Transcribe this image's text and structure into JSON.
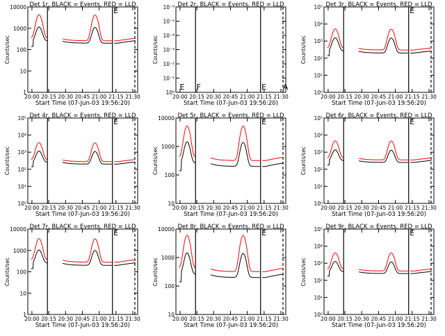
{
  "figure": {
    "xlabel_text": "Start Time (07-Jun-03 19:56:20)",
    "ylabel_text": "Counts/sec"
  },
  "colors": {
    "events": "#000000",
    "lld": "#ff0000",
    "frame": "#000000"
  },
  "x_ticks": [
    "20:00",
    "20:15",
    "20:30",
    "20:45",
    "21:00",
    "21:15",
    "21:30"
  ],
  "chart_data": [
    {
      "type": "line",
      "title": "Det 1r, BLACK = Events, RED = LLD",
      "xlim": [
        0,
        36
      ],
      "ylim": [
        1,
        10000
      ],
      "yscale": "log",
      "yticks": [
        1,
        10,
        100,
        1000,
        10000
      ],
      "ytick_labels": [
        "1",
        "10",
        "100",
        "1000",
        "10000"
      ],
      "baseline": 200,
      "ratio": 1.3,
      "peak": 1100,
      "peak_lld": 4200,
      "empty": false,
      "markers": [
        "",
        "",
        "",
        "E",
        "",
        ""
      ]
    },
    {
      "type": "line",
      "title": "Det 2r, BLACK = Events, RED = LLD",
      "xlim": [
        0,
        36
      ],
      "ylim": [
        1,
        1e-06
      ],
      "yscale": "log",
      "yticks": [
        1,
        0.1,
        0.01,
        0.001,
        0.0001,
        1e-05,
        1e-06
      ],
      "ytick_labels": [
        "10⁰",
        "10⁻¹",
        "10⁻²",
        "10⁻³",
        "10⁻⁴",
        "10⁻⁵",
        "10⁻⁶"
      ],
      "baseline": 0,
      "ratio": 1,
      "peak": 0,
      "peak_lld": 0,
      "empty": true,
      "markers": [
        "E",
        "F",
        "",
        "E",
        "",
        "A"
      ]
    },
    {
      "type": "line",
      "title": "Det 3r, BLACK = Events, RED = LLD",
      "xlim": [
        0,
        36
      ],
      "ylim": [
        1,
        100000
      ],
      "yscale": "log",
      "yticks": [
        1,
        10,
        100,
        1000,
        10000,
        100000
      ],
      "ytick_labels": [
        "10⁰",
        "10¹",
        "10²",
        "10³",
        "10⁴",
        "10⁵"
      ],
      "baseline": 200,
      "ratio": 1.5,
      "peak": 1500,
      "peak_lld": 5000,
      "empty": false,
      "markers": [
        "",
        "",
        "",
        "E",
        "",
        ""
      ]
    },
    {
      "type": "line",
      "title": "Det 4r, BLACK = Events, RED = LLD",
      "xlim": [
        0,
        36
      ],
      "ylim": [
        1,
        100000
      ],
      "yscale": "log",
      "yticks": [
        1,
        10,
        100,
        1000,
        10000,
        100000
      ],
      "ytick_labels": [
        "10⁰",
        "10¹",
        "10²",
        "10³",
        "10⁴",
        "10⁵"
      ],
      "baseline": 200,
      "ratio": 1.4,
      "peak": 1100,
      "peak_lld": 3500,
      "empty": false,
      "markers": [
        "",
        "",
        "",
        "E",
        "",
        ""
      ]
    },
    {
      "type": "line",
      "title": "Det 5r, BLACK = Events, RED = LLD",
      "xlim": [
        0,
        36
      ],
      "ylim": [
        10,
        10000
      ],
      "yscale": "log",
      "yticks": [
        10,
        100,
        1000,
        10000
      ],
      "ytick_labels": [
        "10",
        "100",
        "1000",
        "10000"
      ],
      "baseline": 200,
      "ratio": 1.6,
      "peak": 1400,
      "peak_lld": 5200,
      "empty": false,
      "markers": [
        "",
        "",
        "",
        "E",
        "",
        ""
      ]
    },
    {
      "type": "line",
      "title": "Det 6r, BLACK = Events, RED = LLD",
      "xlim": [
        0,
        36
      ],
      "ylim": [
        1,
        100000
      ],
      "yscale": "log",
      "yticks": [
        1,
        10,
        100,
        1000,
        10000,
        100000
      ],
      "ytick_labels": [
        "10⁰",
        "10¹",
        "10²",
        "10³",
        "10⁴",
        "10⁵"
      ],
      "baseline": 250,
      "ratio": 1.4,
      "peak": 1300,
      "peak_lld": 4500,
      "empty": false,
      "markers": [
        "",
        "",
        "",
        "E",
        "",
        ""
      ]
    },
    {
      "type": "line",
      "title": "Det 7r, BLACK = Events, RED = LLD",
      "xlim": [
        0,
        36
      ],
      "ylim": [
        1,
        10000
      ],
      "yscale": "log",
      "yticks": [
        1,
        10,
        100,
        1000,
        10000
      ],
      "ytick_labels": [
        "1",
        "10",
        "100",
        "1000",
        "10000"
      ],
      "baseline": 200,
      "ratio": 1.4,
      "peak": 1000,
      "peak_lld": 3500,
      "empty": false,
      "markers": [
        "",
        "",
        "",
        "E",
        "",
        ""
      ]
    },
    {
      "type": "line",
      "title": "Det 8r, BLACK = Events, RED = LLD",
      "xlim": [
        0,
        36
      ],
      "ylim": [
        10,
        10000
      ],
      "yscale": "log",
      "yticks": [
        10,
        100,
        1000,
        10000
      ],
      "ytick_labels": [
        "10",
        "100",
        "1000",
        "10000"
      ],
      "baseline": 200,
      "ratio": 1.6,
      "peak": 1400,
      "peak_lld": 6000,
      "empty": false,
      "markers": [
        "",
        "",
        "",
        "E",
        "",
        ""
      ]
    },
    {
      "type": "line",
      "title": "Det 9r, BLACK = Events, RED = LLD",
      "xlim": [
        0,
        36
      ],
      "ylim": [
        1,
        100000
      ],
      "yscale": "log",
      "yticks": [
        1,
        10,
        100,
        1000,
        10000,
        100000
      ],
      "ytick_labels": [
        "10⁰",
        "10¹",
        "10²",
        "10³",
        "10⁴",
        "10⁵"
      ],
      "baseline": 250,
      "ratio": 1.4,
      "peak": 1200,
      "peak_lld": 4000,
      "empty": false,
      "markers": [
        "",
        "",
        "",
        "E",
        "",
        ""
      ]
    }
  ]
}
